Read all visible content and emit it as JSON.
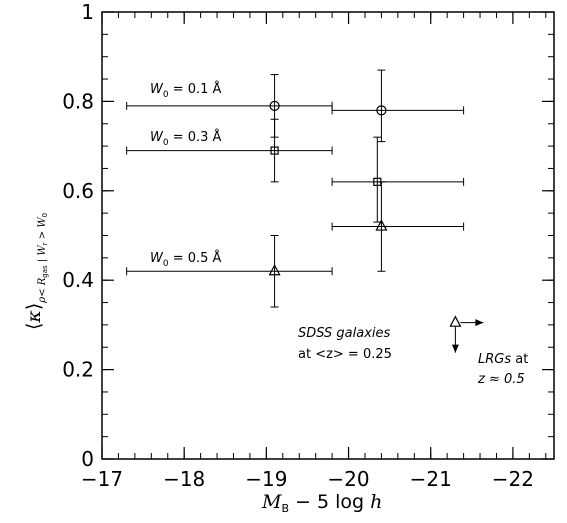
{
  "chart_data": {
    "type": "scatter",
    "xlim": [
      -17,
      -22.5
    ],
    "ylim": [
      0,
      1
    ],
    "x_ticks": [
      -17,
      -18,
      -19,
      -20,
      -21,
      -22
    ],
    "x_tick_labels": [
      "−17",
      "−18",
      "−19",
      "−20",
      "−21",
      "−22"
    ],
    "y_ticks": [
      0,
      0.2,
      0.4,
      0.6,
      0.8,
      1
    ],
    "y_tick_labels": [
      "0",
      "0.2",
      "0.4",
      "0.6",
      "0.8",
      "1"
    ],
    "grid": false,
    "xlabel": {
      "m": "M",
      "b": "B",
      "mid": " − 5 log ",
      "h": "h"
    },
    "ylabel": {
      "bra_l": "⟨",
      "kappa": "κ",
      "bra_r": "⟩",
      "sub_rho": "ρ",
      "sub_lt": "< ",
      "sub_R": "R",
      "sub_gas": "gas",
      "sub_bar": " | ",
      "sub_W": "W",
      "sub_r": "r",
      "sub_gt": " > ",
      "sub_W0": "W",
      "sub_0": "0"
    },
    "series": [
      {
        "name": "W0 = 0.1 Å",
        "marker": "circle",
        "points": [
          {
            "x": -19.1,
            "y": 0.79,
            "y_err_low": 0.07,
            "y_err_high": 0.07,
            "x_low": -17.3,
            "x_high": -19.8
          },
          {
            "x": -20.4,
            "y": 0.78,
            "y_err_low": 0.07,
            "y_err_high": 0.09,
            "x_low": -19.8,
            "x_high": -21.4
          }
        ]
      },
      {
        "name": "W0 = 0.3 Å",
        "marker": "square",
        "points": [
          {
            "x": -19.1,
            "y": 0.69,
            "y_err_low": 0.07,
            "y_err_high": 0.07,
            "x_low": -17.3,
            "x_high": -19.8
          },
          {
            "x": -20.35,
            "y": 0.62,
            "y_err_low": 0.09,
            "y_err_high": 0.1,
            "x_low": -19.8,
            "x_high": -21.4
          }
        ]
      },
      {
        "name": "W0 = 0.5 Å",
        "marker": "triangle",
        "points": [
          {
            "x": -19.1,
            "y": 0.42,
            "y_err_low": 0.08,
            "y_err_high": 0.08,
            "x_low": -17.3,
            "x_high": -19.8
          },
          {
            "x": -20.4,
            "y": 0.52,
            "y_err_low": 0.1,
            "y_err_high": 0.1,
            "x_low": -19.8,
            "x_high": -21.4
          }
        ]
      }
    ],
    "limit_marker": {
      "x": -21.3,
      "y": 0.305,
      "marker": "triangle",
      "arrows": [
        "right",
        "down"
      ]
    },
    "annotations": {
      "w01": {
        "w": "W",
        "sub": "0",
        "rest": " = 0.1 Å"
      },
      "w03": {
        "w": "W",
        "sub": "0",
        "rest": " = 0.3 Å"
      },
      "w05": {
        "w": "W",
        "sub": "0",
        "rest": " = 0.5 Å"
      },
      "sdss_line1": "SDSS galaxies",
      "sdss_line2": "at <z> = 0.25",
      "lrg_line1_it": "LRGs",
      "lrg_line1_rest": " at",
      "lrg_line2": "z ≈ 0.5"
    }
  }
}
